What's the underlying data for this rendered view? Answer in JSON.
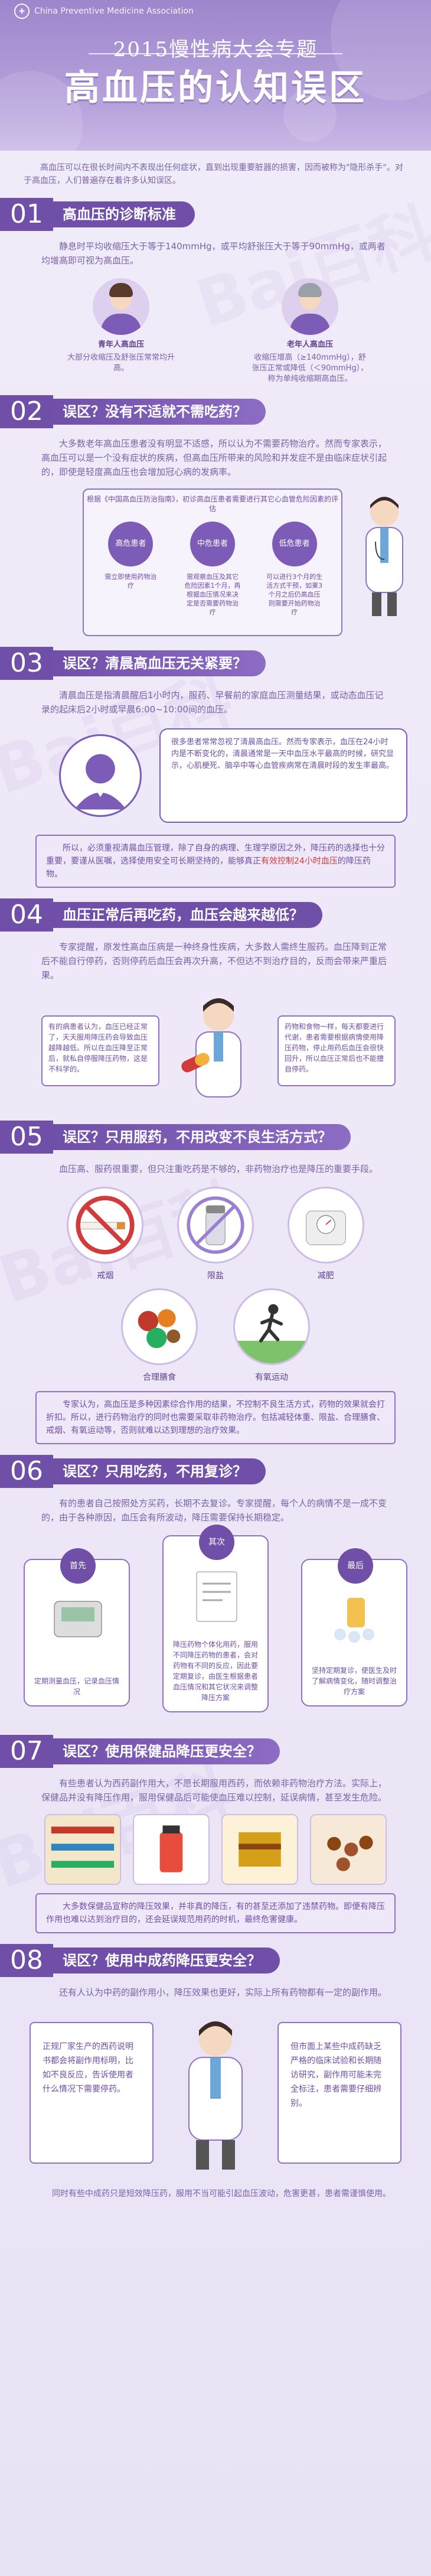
{
  "header": {
    "org": "China Preventive Medicine Association",
    "subtitle": "2015慢性病大会专题",
    "title": "高血压的认知误区"
  },
  "intro": "高血压可以在很长时间内不表现出任何症状，直到出现重要脏器的损害，因而被称为\"隐形杀手\"。对于高血压，人们普遍存在着许多认知误区。",
  "watermark": "Bai百科",
  "sections": [
    {
      "num": "01",
      "title": "高血压的诊断标准",
      "text": "静息时平均收缩压大于等于140mmHg，或平均舒张压大于等于90mmHg，或两者均增高即可视为高血压。",
      "people": [
        {
          "title": "青年人高血压",
          "desc": "大部分收缩压及舒张压常常均升高。"
        },
        {
          "title": "老年人高血压",
          "desc": "收缩压增高（≥140mmHg），舒张压正常或降低（＜90mmHg），称为单纯收缩期高血压。"
        }
      ]
    },
    {
      "num": "02",
      "title": "误区？没有不适就不需吃药？",
      "text": "大多数老年高血压患者没有明显不适感，所以认为不需要药物治疗。然而专家表示，高血压可以是一个没有症状的疾病，但高血压所带来的风险和并发症不是由临床症状引起的，即使是轻度高血压也会增加冠心病的发病率。",
      "guide_title": "根据《中国高血压防治指南》，初诊高血压患者需要进行其它心血管危险因素的评估",
      "guide": [
        {
          "label": "高危患者",
          "desc": "需立即使用药物治疗"
        },
        {
          "label": "中危患者",
          "desc": "需观察血压及其它危险因素1个月，再根据血压情况来决定是否需要药物治疗"
        },
        {
          "label": "低危患者",
          "desc": "可以进行3个月的生活方式干预，如果3个月之后仍高血压则需要开始药物治疗"
        }
      ]
    },
    {
      "num": "03",
      "title": "误区？清晨高血压无关紧要？",
      "text": "清晨血压是指清晨醒后1小时内，服药、早餐前的家庭血压测量结果，或动态血压记录的起床后2小时或早晨6:00~10:00间的血压。",
      "speech": "很多患者常常忽视了清晨高血压。然而专家表示，血压在24小时内是不断变化的，清晨通常是一天中血压水平最高的时候，研究显示，心肌梗死、脑卒中等心血管疾病常在清晨时段的发生率最高。",
      "note": "所以，必须重视清晨血压管理，除了自身的病理、生理学原因之外，降压药的选择也十分重要，要谨从医嘱，选择使用安全可长期坚持的，能够真正有效控制24小时血压的降压药物。",
      "note_highlight": "有效控制24小时血压"
    },
    {
      "num": "04",
      "title": "血压正常后再吃药，血压会越来越低？",
      "text": "专家提醒，原发性高血压病是一种终身性疾病，大多数人需终生服药。血压降到正常后不能自行停药，否则停药后血压会再次升高，不但达不到治疗目的，反而会带来严重后果。",
      "left_box": "有的病患者认为，血压已经正常了，天天服用降压药会导致血压越降越低。所以在血压降至正常后，就私自停服降压药物，这是不科学的。",
      "right_box": "药物和食物一样，每天都要进行代谢，患者需要根据病情使用降压药物，停止用药后血压会很快回升，所以血压正常后也不能擅自停药。"
    },
    {
      "num": "05",
      "title": "误区？只用服药，不用改变不良生活方式？",
      "text": "血压高、服药很重要，但只注重吃药是不够的，非药物治疗也是降压的重要手段。",
      "habits": [
        "戒烟",
        "限盐",
        "减肥",
        "合理膳食",
        "有氧运动"
      ],
      "note": "专家认为，高血压是多种因素综合作用的结果，不控制不良生活方式，药物的效果就会打折扣。所以，进行药物治疗的同时也需要采取非药物治疗。包括减轻体重、限盐、合理膳食、戒烟、有氧运动等，否则就难以达到理想的治疗效果。"
    },
    {
      "num": "06",
      "title": "误区？只用吃药，不用复诊？",
      "text": "有的患者自己按照处方买药，长期不去复诊。专家提醒，每个人的病情不是一成不变的，由于各种原因，血压会有所波动，降压需要保持长期稳定。",
      "steps": [
        {
          "badge": "首先",
          "desc": "定期测量血压，记录血压情况"
        },
        {
          "badge": "其次",
          "desc": "降压药物个体化用药，服用不同降压药物的患者，会对药物有不同的反应，因此要定期复诊，由医生根据患者血压情况和其它状况来调整降压方案"
        },
        {
          "badge": "最后",
          "desc": "坚持定期复诊，使医生及时了解病情变化，随时调整治疗方案"
        }
      ]
    },
    {
      "num": "07",
      "title": "误区？使用保健品降压更安全？",
      "text": "有些患者认为西药副作用大，不愿长期服用西药，而依赖非药物治疗方法。实际上，保健品并没有降压作用，服用保健品后可能使血压难以控制，延误病情，甚至发生危险。",
      "note": "大多数保健品宣称的降压效果，并非真的降压，有的甚至还添加了违禁药物。即便有降压作用也难以达到治疗目的，还会延误规范用药的时机，最终危害健康。"
    },
    {
      "num": "08",
      "title": "误区？使用中成药降压更安全？",
      "text": "还有人认为中药的副作用小，降压效果也更好，实际上所有药物都有一定的副作用。",
      "left_scroll": "正规厂家生产的西药说明书都会将副作用标明，比如不良反应，告诉使用者什么情况下需要停药。",
      "right_scroll": "但市面上某些中成药缺乏严格的临床试验和长期随访研究，副作用可能未完全标注，患者需要仔细辨别。",
      "footer": "同时有些中成药只是短效降压药，服用不当可能引起血压波动，危害更甚，患者需谨慎使用。"
    }
  ],
  "colors": {
    "primary": "#6f4fa8",
    "text": "#7a62a8",
    "highlight": "#d23b3b",
    "bg": "#ece6f6"
  }
}
